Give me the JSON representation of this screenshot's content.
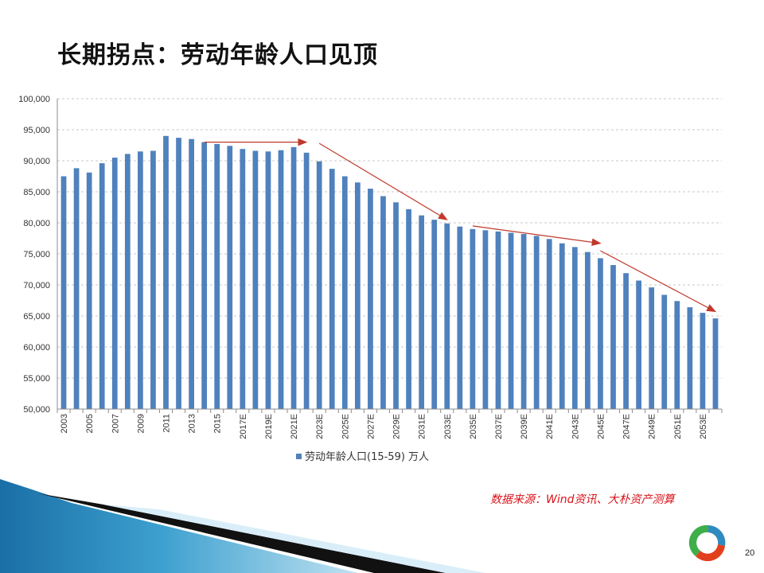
{
  "slide": {
    "title": "长期拐点：劳动年龄人口见顶",
    "source": "数据来源：Wind资讯、大朴资产测算",
    "page_number": "20"
  },
  "colors": {
    "bar": "#4f81bd",
    "arrow": "#c0392b",
    "grid": "#c8c8c8",
    "source_text": "#d9141b"
  },
  "chart_data": {
    "type": "bar",
    "title": "",
    "xlabel": "",
    "ylabel": "",
    "ylim": [
      50000,
      100000
    ],
    "y_ticks": [
      "50,000",
      "55,000",
      "60,000",
      "65,000",
      "70,000",
      "75,000",
      "80,000",
      "85,000",
      "90,000",
      "95,000",
      "100,000"
    ],
    "grid": true,
    "legend_position": "bottom",
    "series": [
      {
        "name": "劳动年龄人口(15-59) 万人",
        "values": [
          87500,
          88800,
          88100,
          89600,
          90500,
          91100,
          91500,
          91600,
          94000,
          93700,
          93500,
          93000,
          92700,
          92400,
          91900,
          91600,
          91500,
          91700,
          92200,
          91300,
          89900,
          88700,
          87500,
          86500,
          85500,
          84300,
          83300,
          82200,
          81200,
          80500,
          79900,
          79400,
          79000,
          78800,
          78600,
          78400,
          78200,
          77900,
          77400,
          76700,
          76100,
          75300,
          74300,
          73200,
          71900,
          70700,
          69600,
          68400,
          67400,
          66400,
          65500,
          64600
        ]
      }
    ],
    "categories": [
      "2003",
      "2004",
      "2005",
      "2006",
      "2007",
      "2008",
      "2009",
      "2010",
      "2011",
      "2012",
      "2013",
      "2014",
      "2015",
      "2016",
      "2017E",
      "2018E",
      "2019E",
      "2020E",
      "2021E",
      "2022E",
      "2023E",
      "2024E",
      "2025E",
      "2026E",
      "2027E",
      "2028E",
      "2029E",
      "2030E",
      "2031E",
      "2032E",
      "2033E",
      "2034E",
      "2035E",
      "2036E",
      "2037E",
      "2038E",
      "2039E",
      "2040E",
      "2041E",
      "2042E",
      "2043E",
      "2044E",
      "2045E",
      "2046E",
      "2047E",
      "2048E",
      "2049E",
      "2050E",
      "2051E",
      "2052E",
      "2053E",
      "2054E"
    ],
    "x_tick_labels": [
      "2003",
      "",
      "2005",
      "",
      "2007",
      "",
      "2009",
      "",
      "2011",
      "",
      "2013",
      "",
      "2015",
      "",
      "2017E",
      "",
      "2019E",
      "",
      "2021E",
      "",
      "2023E",
      "",
      "2025E",
      "",
      "2027E",
      "",
      "2029E",
      "",
      "2031E",
      "",
      "2033E",
      "",
      "2035E",
      "",
      "2037E",
      "",
      "2039E",
      "",
      "2041E",
      "",
      "2043E",
      "",
      "2045E",
      "",
      "2047E",
      "",
      "2049E",
      "",
      "2051E",
      "",
      "2053E",
      ""
    ],
    "annotations": [
      {
        "type": "arrow",
        "from": {
          "x": "2014",
          "y": 93000
        },
        "to": {
          "x": "2022E",
          "y": 93000
        }
      },
      {
        "type": "arrow",
        "from": {
          "x": "2023E",
          "y": 92800
        },
        "to": {
          "x": "2033E",
          "y": 80500
        }
      },
      {
        "type": "arrow",
        "from": {
          "x": "2035E",
          "y": 79500
        },
        "to": {
          "x": "2045E",
          "y": 76700
        }
      },
      {
        "type": "arrow",
        "from": {
          "x": "2045E",
          "y": 75500
        },
        "to": {
          "x": "2054E",
          "y": 65700
        }
      }
    ]
  }
}
